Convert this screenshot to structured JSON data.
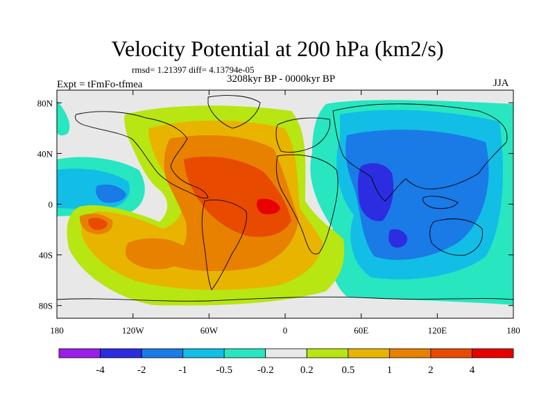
{
  "header": {
    "title": "Velocity Potential at 200 hPa (km2/s)",
    "stats": "rmsd= 1.21397 diff= 4.13794e-05",
    "period": "3208kyr BP - 0000kyr BP",
    "expt": "Expt = tFmFo-tfmea",
    "season": "JJA"
  },
  "map": {
    "x_ticks": [
      {
        "lon": -180,
        "label": "180"
      },
      {
        "lon": -120,
        "label": "120W"
      },
      {
        "lon": -60,
        "label": "60W"
      },
      {
        "lon": 0,
        "label": "0"
      },
      {
        "lon": 60,
        "label": "60E"
      },
      {
        "lon": 120,
        "label": "120E"
      },
      {
        "lon": 180,
        "label": "180"
      }
    ],
    "y_ticks": [
      {
        "lat": 80,
        "label": "80N"
      },
      {
        "lat": 40,
        "label": "40N"
      },
      {
        "lat": 0,
        "label": "0"
      },
      {
        "lat": -40,
        "label": "40S"
      },
      {
        "lat": -80,
        "label": "80S"
      }
    ],
    "lon_range": [
      -180,
      180
    ],
    "lat_range": [
      -90,
      90
    ]
  },
  "colorbar": {
    "colors": [
      "#9b1fe8",
      "#2c2ce0",
      "#1a7ae6",
      "#12bde6",
      "#28e6c0",
      "#e8e8e8",
      "#b8e612",
      "#e8b400",
      "#e88000",
      "#e84a00",
      "#e80000"
    ],
    "labels": [
      "-4",
      "-2",
      "-1",
      "-0.5",
      "-0.2",
      "0.2",
      "0.5",
      "1",
      "2",
      "4"
    ]
  },
  "colors": {
    "background": "#e8e8e8",
    "coast": "#000000"
  }
}
